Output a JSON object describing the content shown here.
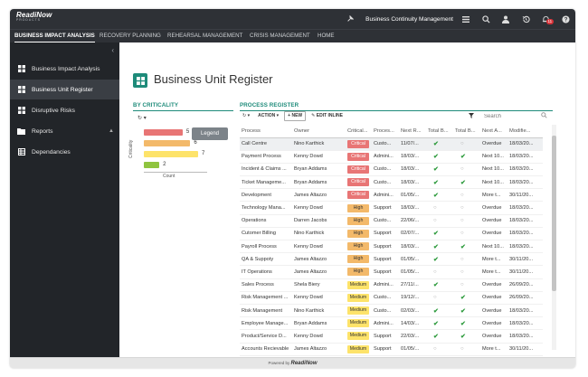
{
  "topbar": {
    "logo_text": "ReadiNow",
    "logo_sub": "PRODUCTS",
    "app_title": "Business Continuity Management",
    "notification_count": "11"
  },
  "nav": {
    "tabs": [
      {
        "label": "BUSINESS IMPACT ANALYSIS",
        "active": true
      },
      {
        "label": "RECOVERY PLANNING"
      },
      {
        "label": "REHEARSAL MANAGEMENT"
      },
      {
        "label": "CRISIS MANAGEMENT"
      },
      {
        "label": "HOME"
      }
    ]
  },
  "sidebar": {
    "collapse": "‹",
    "items": [
      {
        "label": "Business Impact Analysis",
        "icon": "grid-icon"
      },
      {
        "label": "Business Unit Register",
        "icon": "grid-icon",
        "active": true
      },
      {
        "label": "Disruptive Risks",
        "icon": "grid-icon"
      },
      {
        "label": "Reports",
        "icon": "folder-icon"
      },
      {
        "label": "Dependancies",
        "icon": "table-icon"
      }
    ]
  },
  "page": {
    "title": "Business Unit Register"
  },
  "criticality": {
    "header": "BY CRITICALITY",
    "legend": "Legend",
    "y_label": "Criticality",
    "x_label": "Count"
  },
  "chart_data": {
    "type": "bar",
    "orientation": "horizontal",
    "categories": [
      "Critical",
      "High",
      "Medium",
      "Low"
    ],
    "values": [
      5,
      6,
      7,
      2
    ],
    "colors": [
      "#e87575",
      "#f3b96a",
      "#fde36a",
      "#8fc43f"
    ],
    "xlabel": "Count",
    "ylabel": "Criticality"
  },
  "register": {
    "header": "PROCESS REGISTER",
    "toolbar": {
      "action": "ACTION",
      "new": "+ NEW",
      "edit_inline": "EDIT INLINE",
      "search_placeholder": "Search"
    },
    "columns": [
      "Process",
      "Owner",
      "Critical...",
      "Proces...",
      "Next R...",
      "Total B...",
      "Total B...",
      "Next A...",
      "Modifie..."
    ],
    "rows": [
      {
        "process": "Call Centre",
        "owner": "Nino Karthick",
        "crit": "Critical",
        "ptype": "Custo...",
        "next_r": "11/07/...",
        "b1": "check",
        "b2": "circle",
        "next_a": "Overdue",
        "next_a_s": "ov",
        "mod": "18/03/20..."
      },
      {
        "process": "Payment Process",
        "owner": "Kenny Dowd",
        "crit": "Critical",
        "ptype": "Admini...",
        "next_r": "18/03/...",
        "b1": "check",
        "b2": "check",
        "next_a": "Next 10...",
        "next_a_s": "nx",
        "mod": "18/03/20..."
      },
      {
        "process": "Incident & Claims ...",
        "owner": "Bryan Addams",
        "crit": "Critical",
        "ptype": "Custo...",
        "next_r": "18/03/...",
        "b1": "check",
        "b2": "circle",
        "next_a": "Next 10...",
        "next_a_s": "nx",
        "mod": "18/03/20..."
      },
      {
        "process": "Ticket Manageme...",
        "owner": "Bryan Addams",
        "crit": "Critical",
        "ptype": "Custo...",
        "next_r": "18/03/...",
        "b1": "check",
        "b2": "check",
        "next_a": "Next 10...",
        "next_a_s": "nx",
        "mod": "18/03/20..."
      },
      {
        "process": "Development",
        "owner": "James Altazzo",
        "crit": "Critical",
        "ptype": "Admini...",
        "next_r": "01/05/...",
        "b1": "check",
        "b2": "circle",
        "next_a": "More t...",
        "next_a_s": "mt",
        "mod": "30/11/20..."
      },
      {
        "process": "Technology Mana...",
        "owner": "Kenny Dowd",
        "crit": "High",
        "ptype": "Support",
        "next_r": "18/03/...",
        "b1": "circle",
        "b2": "circle",
        "next_a": "Overdue",
        "next_a_s": "ov",
        "mod": "18/03/20..."
      },
      {
        "process": "Operations",
        "owner": "Darren Jacobs",
        "crit": "High",
        "ptype": "Custo...",
        "next_r": "22/06/...",
        "b1": "circle",
        "b2": "circle",
        "next_a": "Overdue",
        "next_a_s": "ov",
        "mod": "18/03/20..."
      },
      {
        "process": "Cutomer Billing",
        "owner": "Nino Karthick",
        "crit": "High",
        "ptype": "Support",
        "next_r": "02/07/...",
        "b1": "check",
        "b2": "circle",
        "next_a": "Overdue",
        "next_a_s": "ov",
        "mod": "18/03/20..."
      },
      {
        "process": "Payroll Process",
        "owner": "Kenny Dowd",
        "crit": "High",
        "ptype": "Support",
        "next_r": "18/03/...",
        "b1": "check",
        "b2": "check",
        "next_a": "Next 10...",
        "next_a_s": "nx",
        "mod": "18/03/20..."
      },
      {
        "process": "QA & Suppoty",
        "owner": "James Altazzo",
        "crit": "High",
        "ptype": "Support",
        "next_r": "01/05/...",
        "b1": "check",
        "b2": "circle",
        "next_a": "More t...",
        "next_a_s": "mt",
        "mod": "30/11/20..."
      },
      {
        "process": "IT Operations",
        "owner": "James Altazzo",
        "crit": "High",
        "ptype": "Support",
        "next_r": "01/05/...",
        "b1": "circle",
        "b2": "circle",
        "next_a": "More t...",
        "next_a_s": "mt",
        "mod": "30/11/20..."
      },
      {
        "process": "Sales Process",
        "owner": "Shela Biery",
        "crit": "Medium",
        "ptype": "Admini...",
        "next_r": "27/11/...",
        "b1": "check",
        "b2": "circle",
        "next_a": "Overdue",
        "next_a_s": "ov",
        "mod": "26/09/20..."
      },
      {
        "process": "Risk Management ...",
        "owner": "Kenny Dowd",
        "crit": "Medium",
        "ptype": "Custo...",
        "next_r": "19/12/...",
        "b1": "circle",
        "b2": "check",
        "next_a": "Overdue",
        "next_a_s": "ov",
        "mod": "26/09/20..."
      },
      {
        "process": "Risk Management",
        "owner": "Nino Karthick",
        "crit": "Medium",
        "ptype": "Custo...",
        "next_r": "02/03/...",
        "b1": "check",
        "b2": "check",
        "next_a": "Overdue",
        "next_a_s": "ov",
        "mod": "18/03/20..."
      },
      {
        "process": "Employee Manage...",
        "owner": "Bryan Addams",
        "crit": "Medium",
        "ptype": "Admini...",
        "next_r": "14/03/...",
        "b1": "check",
        "b2": "check",
        "next_a": "Overdue",
        "next_a_s": "ov",
        "mod": "18/03/20..."
      },
      {
        "process": "Product/Service D...",
        "owner": "Kenny Dowd",
        "crit": "Medium",
        "ptype": "Support",
        "next_r": "22/03/...",
        "b1": "check",
        "b2": "check",
        "next_a": "Overdue",
        "next_a_s": "ov",
        "mod": "18/03/20..."
      },
      {
        "process": "Accounts Recievable",
        "owner": "James Altazzo",
        "crit": "Medium",
        "ptype": "Support",
        "next_r": "01/05/...",
        "b1": "circle",
        "b2": "circle",
        "next_a": "More t...",
        "next_a_s": "mt",
        "mod": "30/11/20..."
      }
    ]
  },
  "footer": {
    "text": "Powered by",
    "brand": "ReadiNow"
  }
}
